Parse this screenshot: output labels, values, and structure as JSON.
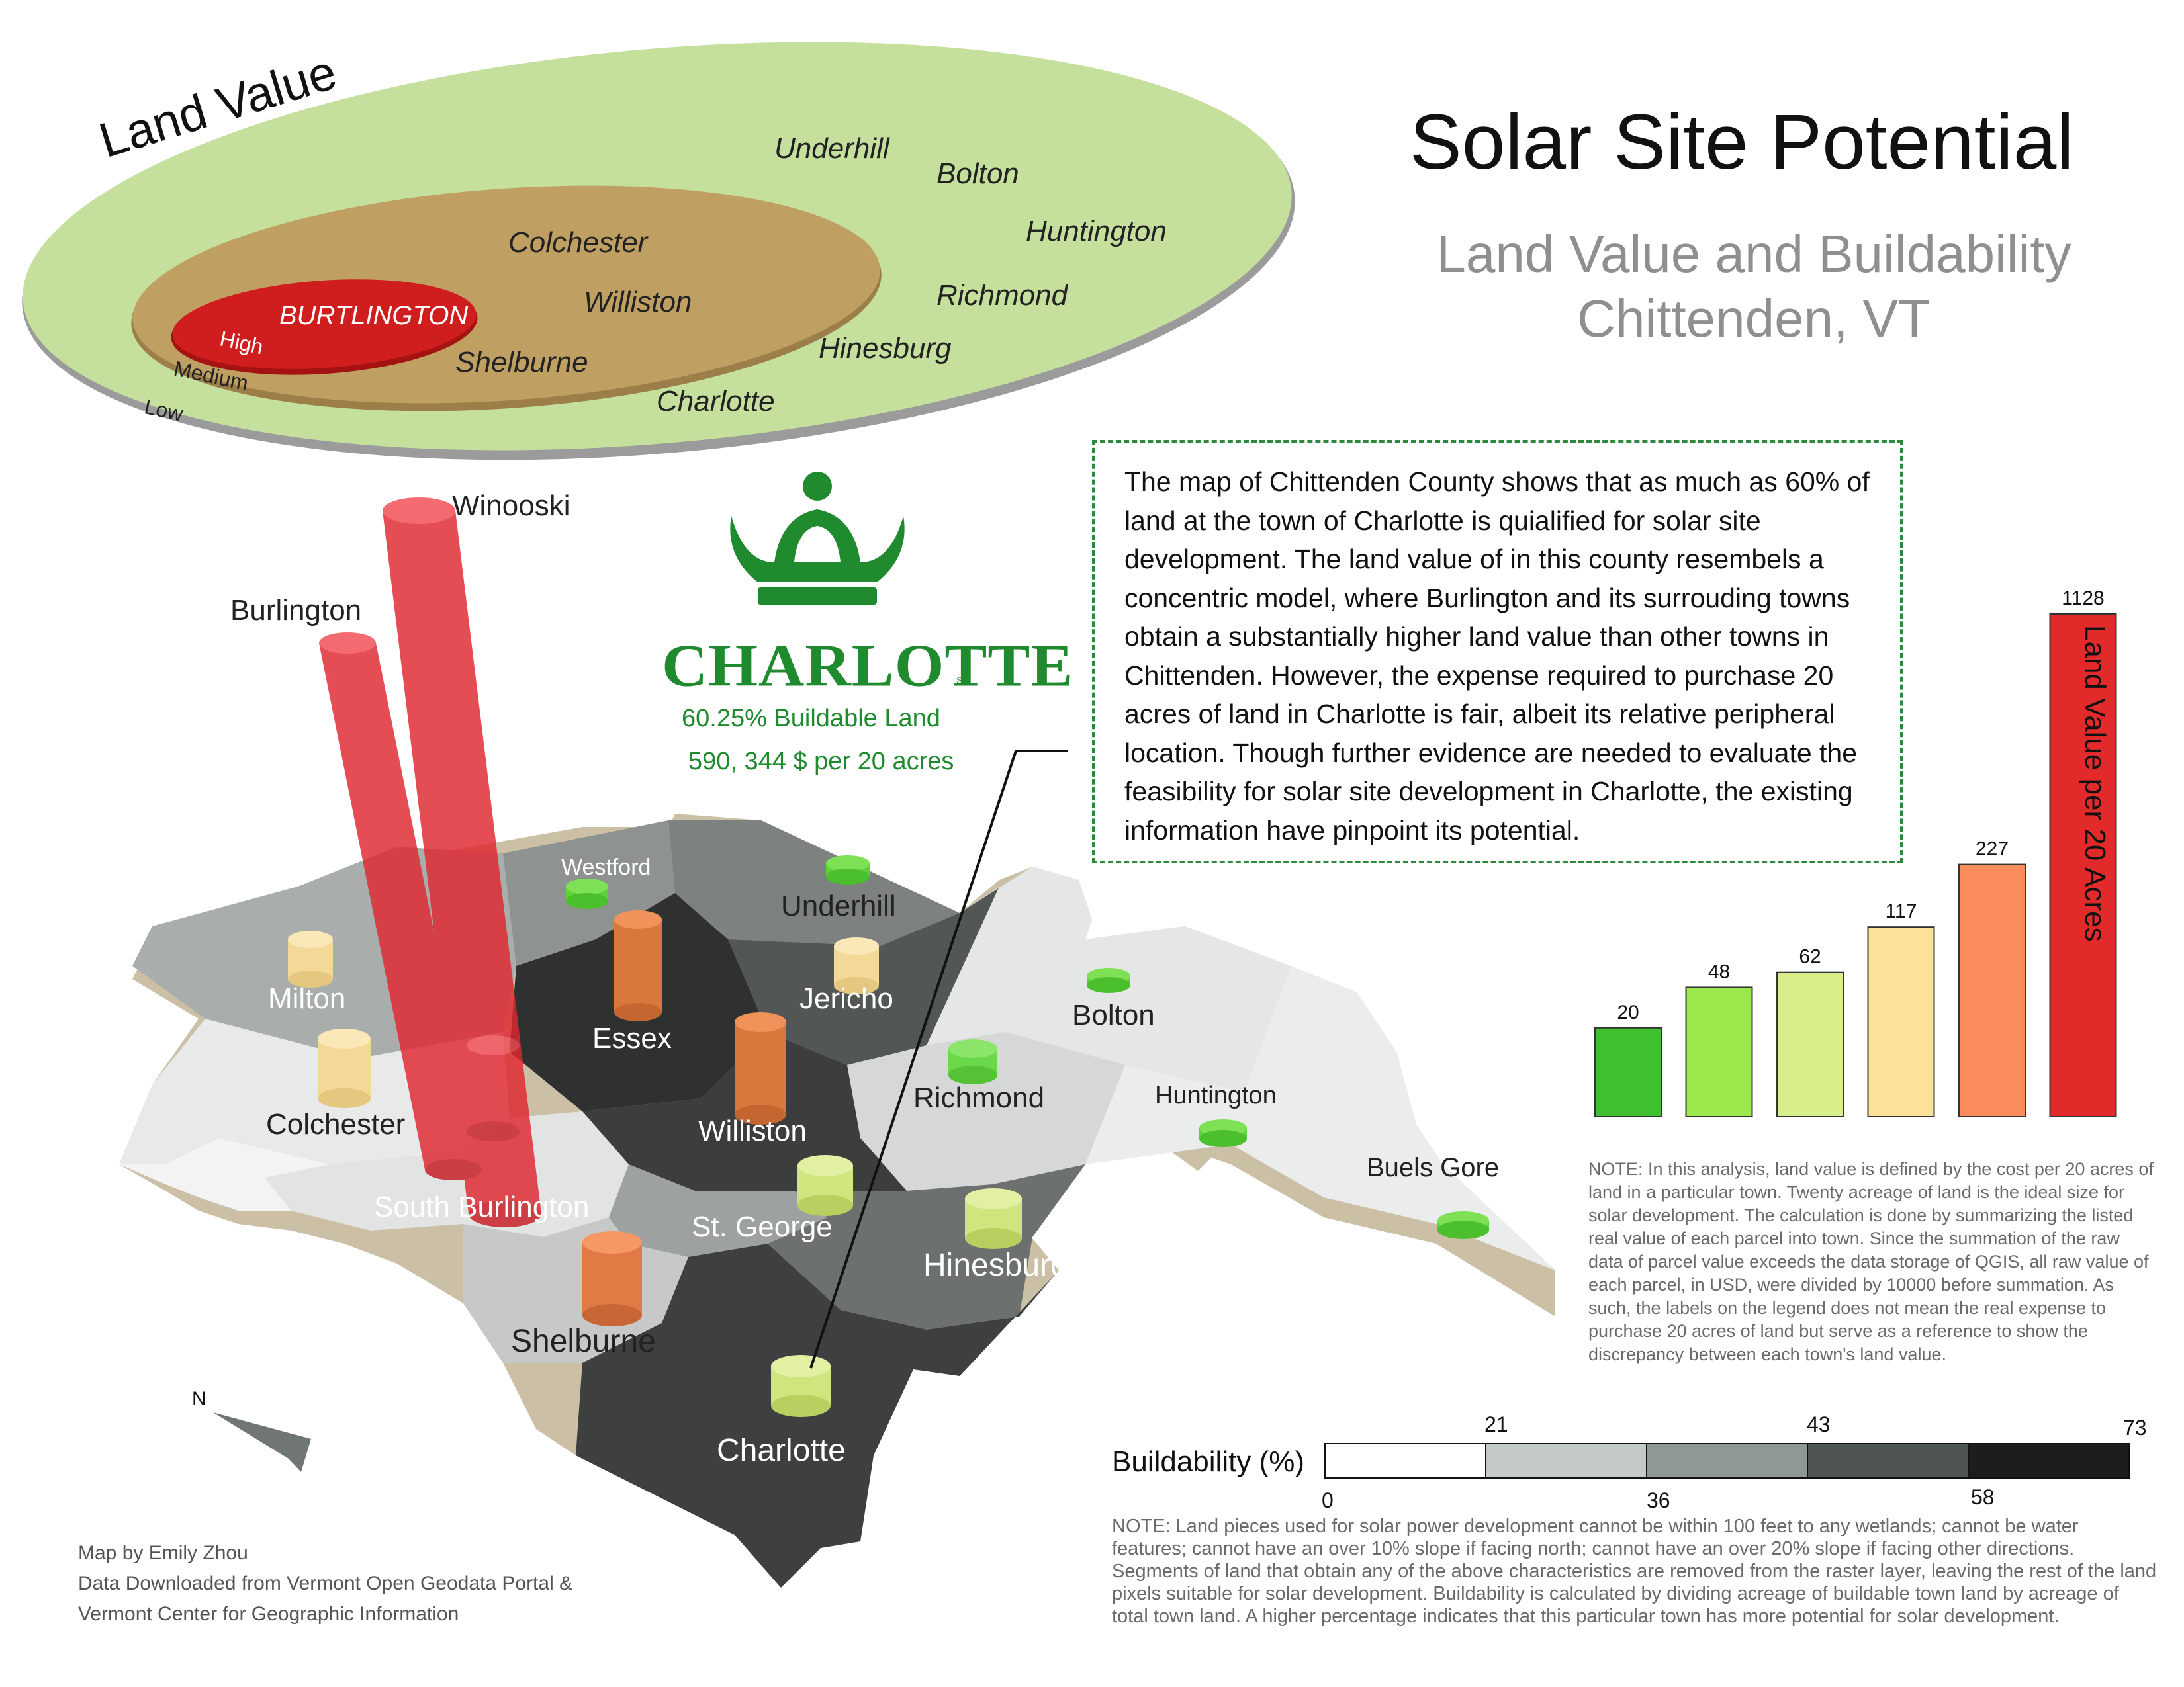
{
  "title": "Solar Site Potential",
  "subtitle": {
    "line1": "Land Value and Buildability",
    "line2": "Chittenden, VT"
  },
  "land_value_diagram": {
    "axis_label": "Land Value",
    "levels": {
      "high": "High",
      "medium": "Medium",
      "low": "Low"
    },
    "center_town": "BURTLINGTON",
    "medium_towns": [
      "Colchester",
      "Williston",
      "Shelburne"
    ],
    "low_towns": [
      "Underhill",
      "Bolton",
      "Huntington",
      "Richmond",
      "Hinesburg",
      "Charlotte"
    ],
    "colors": {
      "high": "#d01e1e",
      "medium": "#c0a062",
      "low": "#c5df9d"
    }
  },
  "charlotte_highlight": {
    "logo_text": "CHARLOTTE",
    "logo_mark": "SM",
    "buildable": "60.25% Buildable Land",
    "price": "590, 344 $ per 20 acres",
    "color": "#208a2f"
  },
  "description": "The map of Chittenden County shows that as much as 60% of land at the town of Charlotte is quialified for solar site development. The land value of in this county resembels a concentric model, where Burlington and its surrouding towns obtain a substantially higher land value than other towns in Chittenden. However, the expense required to purchase 20 acres of land in Charlotte is fair, albeit its relative peripheral location. Though further evidence are needed to evaluate the feasibility for solar site development in Charlotte, the existing information have pinpoint its potential.",
  "map": {
    "towns": {
      "winooski": "Winooski",
      "burlington": "Burlington",
      "westford": "Westford",
      "underhill": "Underhill",
      "milton": "Milton",
      "jericho": "Jericho",
      "essex": "Essex",
      "bolton": "Bolton",
      "colchester": "Colchester",
      "williston": "Williston",
      "richmond": "Richmond",
      "huntington": "Huntington",
      "buels_gore": "Buels Gore",
      "south_burlington": "South Burlington",
      "st_george": "St. George",
      "hinesburg": "Hinesburg",
      "shelburne": "Shelburne",
      "charlotte": "Charlotte"
    },
    "north_label": "N"
  },
  "chart_data": {
    "type": "bar",
    "ylabel": "Land Value per 20 Acres",
    "categories": [
      "",
      "",
      "",
      "",
      "",
      ""
    ],
    "values": [
      20,
      48,
      62,
      117,
      227,
      1128
    ],
    "value_labels": [
      "20",
      "48",
      "62",
      "117",
      "227",
      "1128"
    ],
    "colors": [
      "#3fc12f",
      "#9ae84c",
      "#d8ee8a",
      "#fde09a",
      "#fb8d5c",
      "#e22a2a"
    ],
    "ylim": [
      0,
      1128
    ]
  },
  "note_land_value": "NOTE: In this analysis, land value is defined by the cost per 20 acres of land in a particular town.  Twenty acreage of land is the ideal size for solar development.  The calculation is done by summarizing the listed real value of each parcel into town.  Since the summation of the raw data of parcel value exceeds the data storage of QGIS, all raw value of each parcel, in USD, were divided by 10000 before summation.  As such, the labels on the legend does not mean the real expense to purchase 20 acres of land but serve as a reference to show the discrepancy between each town's land value.",
  "buildability_legend": {
    "label": "Buildability (%)",
    "ticks_top": [
      "21",
      "43",
      "73"
    ],
    "ticks_bottom": [
      "0",
      "36",
      "58"
    ],
    "colors": [
      "#ffffff",
      "#c3cac7",
      "#8f9894",
      "#4e5452",
      "#1c1e1e"
    ]
  },
  "note_buildability": "NOTE: Land pieces used for solar power development cannot be within 100 feet to any wetlands; cannot be water features; cannot have an over 10% slope if facing north; cannot have an over 20% slope if facing other directions. Segments of land that obtain any of the above characteristics are removed from the raster layer, leaving the rest of the land pixels suitable for solar development. Buildability is calculated by dividing acreage of buildable town land by  acreage of total town land. A higher percentage indicates that this particular town has more potential for solar development.",
  "credits": {
    "author": "Map by Emily Zhou",
    "source1": "Data Downloaded from Vermont Open Geodata Portal &",
    "source2": "Vermont Center for Geographic Information"
  }
}
